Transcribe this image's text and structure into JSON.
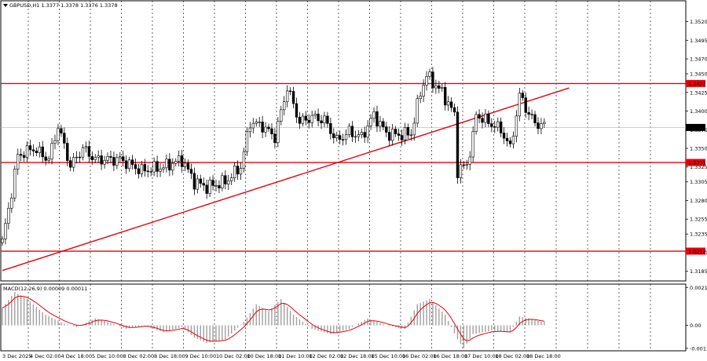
{
  "chart_data": {
    "type": "candlestick",
    "header": "GBPUSD,H1  1.3377 1.3378 1.3376 1.3378",
    "y_ticks": [
      "1.3520",
      "1.3495",
      "1.3470",
      "1.3450",
      "1.3425",
      "1.3400",
      "1.3375",
      "1.3350",
      "1.3325",
      "1.3305",
      "1.3280",
      "1.3255",
      "1.3235",
      "1.3210",
      "1.3185"
    ],
    "ylim": [
      1.3172,
      1.3548
    ],
    "current_price": "1.3378",
    "levels": [
      {
        "value": 1.3437,
        "label": "1.3437"
      },
      {
        "value": 1.3331,
        "label": "1.3331"
      },
      {
        "value": 1.3212,
        "label": "1.3212"
      }
    ],
    "trendline": {
      "from": {
        "bar": 0,
        "price": 1.3186
      },
      "to": {
        "bar": 183,
        "price": 1.3431
      }
    },
    "x_labels": [
      "3 Dec 2025",
      "4 Dec 02:00",
      "4 Dec 18:00",
      "5 Dec 10:00",
      "8 Dec 02:00",
      "8 Dec 18:00",
      "9 Dec 10:00",
      "10 Dec 02:00",
      "10 Dec 18:00",
      "11 Dec 10:00",
      "12 Dec 02:00",
      "12 Dec 18:00",
      "15 Dec 10:00",
      "16 Dec 02:00",
      "16 Dec 18:00",
      "17 Dec 10:00",
      "18 Dec 02:00",
      "18 Dec 18:00"
    ],
    "anchors": [
      [
        0,
        1.3225
      ],
      [
        2,
        1.3268
      ],
      [
        5,
        1.334
      ],
      [
        10,
        1.335
      ],
      [
        15,
        1.3335
      ],
      [
        18,
        1.338
      ],
      [
        22,
        1.3326
      ],
      [
        26,
        1.335
      ],
      [
        30,
        1.3335
      ],
      [
        38,
        1.3335
      ],
      [
        45,
        1.332
      ],
      [
        52,
        1.3325
      ],
      [
        58,
        1.3335
      ],
      [
        62,
        1.3305
      ],
      [
        66,
        1.3298
      ],
      [
        72,
        1.3305
      ],
      [
        77,
        1.3325
      ],
      [
        80,
        1.3385
      ],
      [
        84,
        1.338
      ],
      [
        88,
        1.3365
      ],
      [
        92,
        1.3432
      ],
      [
        96,
        1.3385
      ],
      [
        100,
        1.3392
      ],
      [
        104,
        1.3388
      ],
      [
        108,
        1.336
      ],
      [
        112,
        1.3372
      ],
      [
        116,
        1.3365
      ],
      [
        120,
        1.3395
      ],
      [
        124,
        1.337
      ],
      [
        128,
        1.3368
      ],
      [
        132,
        1.337
      ],
      [
        135,
        1.3425
      ],
      [
        137,
        1.3448
      ],
      [
        142,
        1.3425
      ],
      [
        146,
        1.3395
      ],
      [
        147,
        1.332
      ],
      [
        150,
        1.3328
      ],
      [
        152,
        1.3365
      ],
      [
        153,
        1.3395
      ],
      [
        157,
        1.3385
      ],
      [
        161,
        1.3375
      ],
      [
        164,
        1.335
      ],
      [
        166,
        1.3395
      ],
      [
        167,
        1.342
      ],
      [
        168,
        1.3415
      ],
      [
        170,
        1.3395
      ],
      [
        172,
        1.3385
      ],
      [
        174,
        1.338
      ]
    ],
    "macd": {
      "label": "MACD(12,26,9)  0.00009 0.00011",
      "y_ticks": [
        "0.00216",
        "0.00",
        "-0.00131"
      ],
      "ylim": [
        -0.00145,
        0.00235
      ],
      "anchors": [
        [
          0,
          0.001
        ],
        [
          4,
          0.0019
        ],
        [
          8,
          0.0015
        ],
        [
          14,
          0.0006
        ],
        [
          20,
          0.0001
        ],
        [
          24,
          -0.0001
        ],
        [
          30,
          0.0004
        ],
        [
          34,
          0.0002
        ],
        [
          40,
          -0.0002
        ],
        [
          46,
          0.0
        ],
        [
          52,
          -0.0004
        ],
        [
          58,
          -0.0001
        ],
        [
          62,
          -0.0007
        ],
        [
          66,
          -0.001
        ],
        [
          72,
          -0.0008
        ],
        [
          78,
          0.0002
        ],
        [
          82,
          0.0012
        ],
        [
          86,
          0.0008
        ],
        [
          90,
          0.0015
        ],
        [
          94,
          0.0006
        ],
        [
          100,
          -0.0002
        ],
        [
          106,
          -0.0005
        ],
        [
          112,
          -0.0002
        ],
        [
          118,
          0.0004
        ],
        [
          124,
          0.0
        ],
        [
          130,
          -0.0002
        ],
        [
          134,
          0.0012
        ],
        [
          138,
          0.0015
        ],
        [
          143,
          0.0006
        ],
        [
          147,
          -0.0008
        ],
        [
          149,
          -0.0013
        ],
        [
          152,
          -0.0005
        ],
        [
          158,
          -0.0003
        ],
        [
          164,
          -0.0004
        ],
        [
          167,
          0.0005
        ],
        [
          170,
          0.0004
        ],
        [
          174,
          0.0002
        ]
      ]
    }
  }
}
